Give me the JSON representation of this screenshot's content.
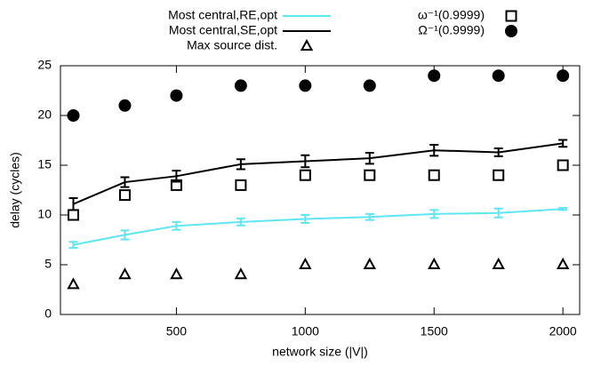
{
  "chart_data": {
    "type": "line",
    "x_label": "network size (|V|)",
    "y_label": "delay (cycles)",
    "x": [
      100,
      300,
      500,
      750,
      1000,
      1250,
      1500,
      1750,
      2000
    ],
    "xlim": [
      50,
      2065
    ],
    "ylim": [
      0,
      25
    ],
    "xticks": [
      500,
      1000,
      1500,
      2000
    ],
    "yticks": [
      0,
      5,
      10,
      15,
      20,
      25
    ],
    "series": [
      {
        "name": "Most central,RE,opt",
        "color": "#5ee6f2",
        "values": [
          7.0,
          8.0,
          8.9,
          9.3,
          9.6,
          9.8,
          10.1,
          10.2,
          10.6
        ],
        "errors": [
          0.3,
          0.45,
          0.4,
          0.35,
          0.4,
          0.3,
          0.4,
          0.45,
          0.1
        ]
      },
      {
        "name": "Most central,SE,opt",
        "color": "#000000",
        "values": [
          11.1,
          13.3,
          13.9,
          15.1,
          15.4,
          15.7,
          16.5,
          16.3,
          17.2
        ],
        "errors": [
          0.6,
          0.5,
          0.55,
          0.5,
          0.6,
          0.55,
          0.55,
          0.4,
          0.35
        ]
      },
      {
        "name": "Max source dist.",
        "color": "#000000",
        "marker": "triangle",
        "values": [
          3,
          4,
          4,
          4,
          5,
          5,
          5,
          5,
          5
        ]
      },
      {
        "name": "ω⁻¹(0.9999)",
        "color": "#000000",
        "marker": "square",
        "values": [
          10,
          12,
          13,
          13,
          14,
          14,
          14,
          14,
          15
        ]
      },
      {
        "name": "Ω⁻¹(0.9999)",
        "color": "#000000",
        "marker": "circle",
        "values": [
          20,
          21,
          22,
          23,
          23,
          23,
          24,
          24,
          24
        ]
      }
    ]
  }
}
